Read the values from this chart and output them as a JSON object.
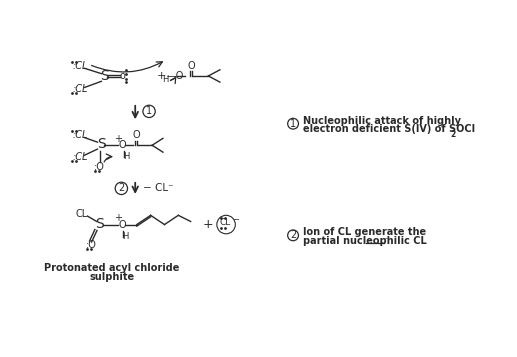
{
  "bg_color": "#ffffff",
  "text_color": "#2a2a2a",
  "step1_desc_line1": "Nucleophilic attack of highly",
  "step1_desc_line2": "electron deficient S(IV) of SOCl",
  "step1_desc_sub": "2",
  "step2_desc_line1": "Ion of CL generate the",
  "step2_desc_line2": "partial nucleophilic CL",
  "bottom_label_line1": "Protonated acyl chloride",
  "bottom_label_line2": "sulphite"
}
